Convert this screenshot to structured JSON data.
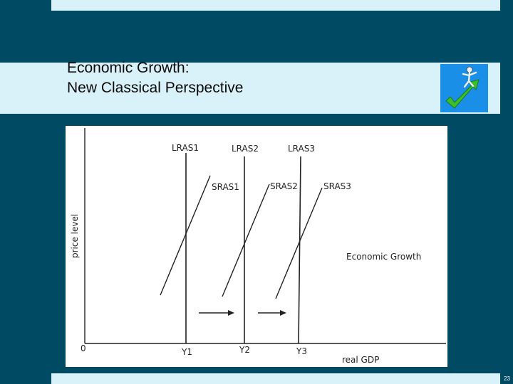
{
  "slide": {
    "title_line1": "Economic Growth:",
    "title_line2": "New Classical Perspective",
    "page_number": "23",
    "logo_icon": "growth-figure-arrow-icon",
    "colors": {
      "background": "#004a63",
      "band": "#d9f2f9",
      "logo_blue": "#1a8fe8",
      "logo_green": "#3cbf2a"
    }
  },
  "diagram": {
    "origin_label": "0",
    "y_axis_label": "price level",
    "x_axis_label": "real GDP",
    "annotation": "Economic Growth",
    "lras_labels": [
      "LRAS1",
      "LRAS2",
      "LRAS3"
    ],
    "sras_labels": [
      "SRAS1",
      "SRAS2",
      "SRAS3"
    ],
    "output_labels": [
      "Y1",
      "Y2",
      "Y3"
    ]
  }
}
